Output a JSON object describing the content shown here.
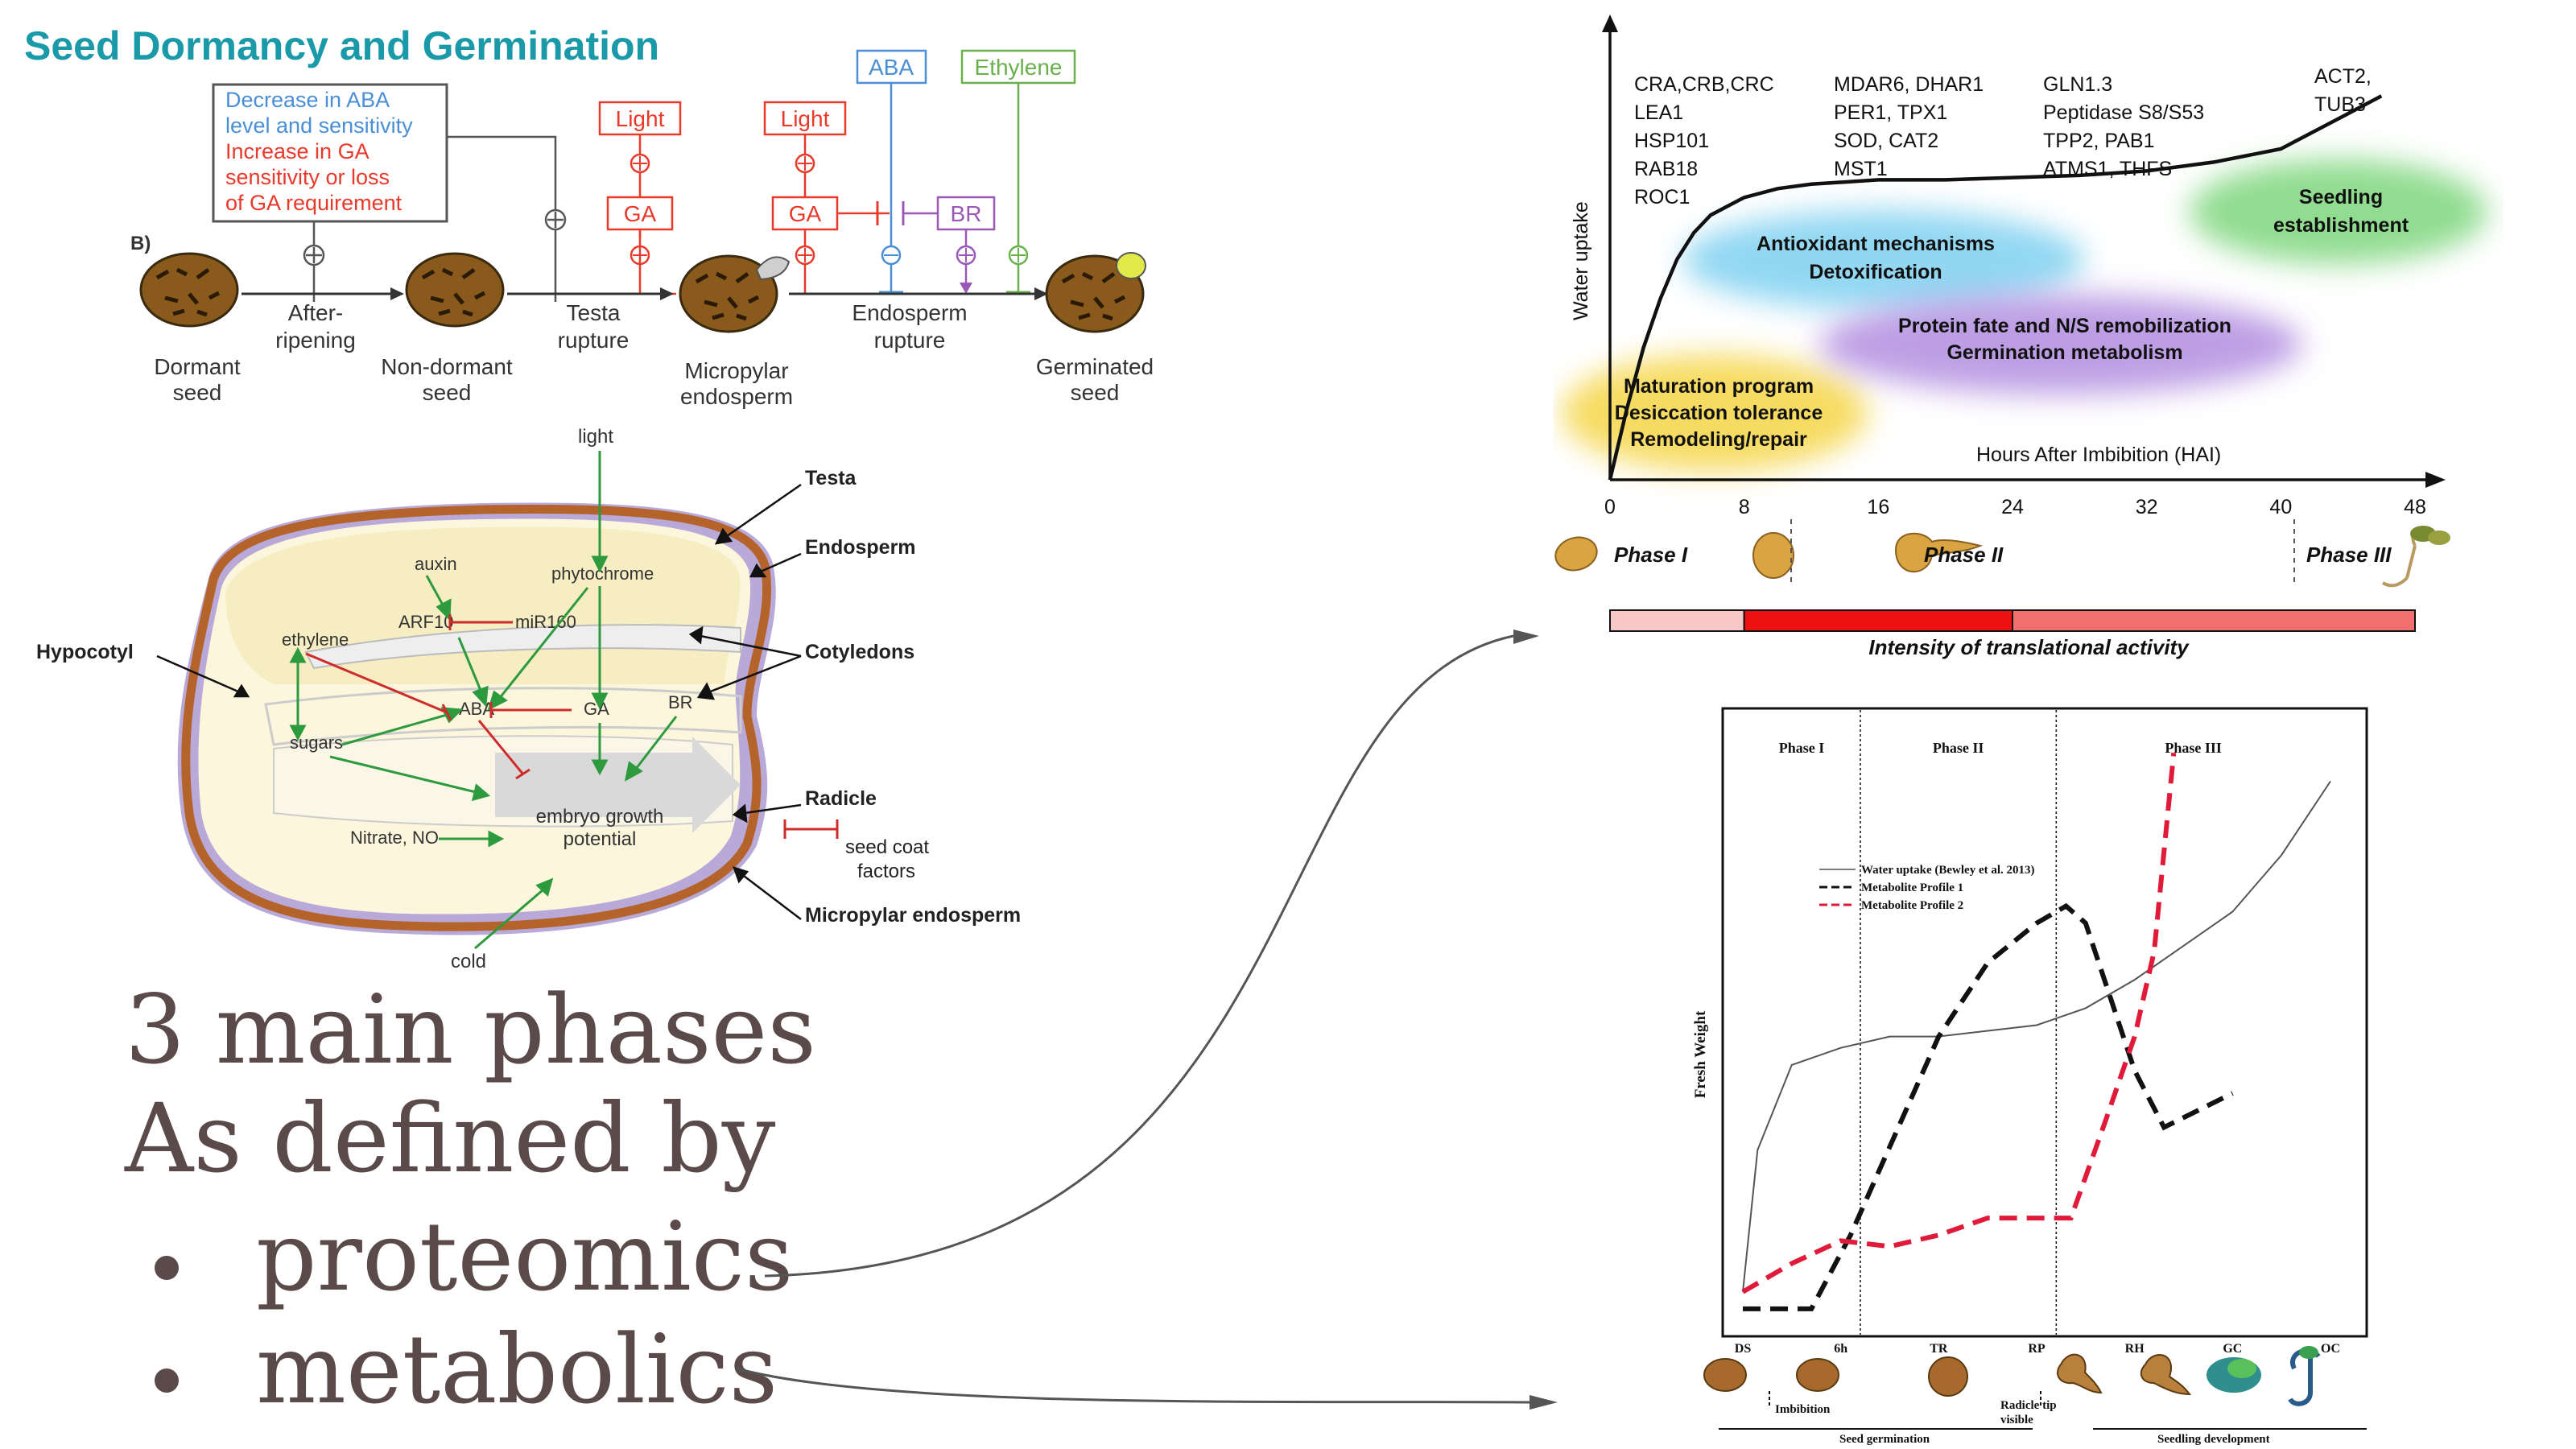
{
  "slide": {
    "title": "Seed Dormancy and Germination",
    "body_line1": "3 main phases",
    "body_line2": "As defined by",
    "bullets": [
      "proteomics",
      "metabolics"
    ]
  },
  "panel_b": {
    "label": "B)",
    "box_line1": "Decrease in ABA",
    "box_line2": "level and sensitivity",
    "box_line3": "Increase in GA",
    "box_line4": "sensitivity or loss",
    "box_line5": "of GA requirement",
    "light1": "Light",
    "ga1": "GA",
    "light2": "Light",
    "ga2": "GA",
    "aba": "ABA",
    "br": "BR",
    "ethylene": "Ethylene",
    "step1_a": "After-",
    "step1_b": "ripening",
    "step2_a": "Testa",
    "step2_b": "rupture",
    "step3_a": "Endosperm",
    "step3_b": "rupture",
    "seed1_a": "Dormant",
    "seed1_b": "seed",
    "seed2_a": "Non-dormant",
    "seed2_b": "seed",
    "seed3_a": "Micropylar",
    "seed3_b": "endosperm",
    "seed4_a": "Germinated",
    "seed4_b": "seed",
    "colors": {
      "red": "#e8392a",
      "blue": "#4a8fd6",
      "green": "#6ab04c",
      "purple": "#9b59b6",
      "grey": "#555555"
    }
  },
  "seed_diagram": {
    "light": "light",
    "testa": "Testa",
    "endosperm": "Endosperm",
    "cotyledons": "Cotyledons",
    "hypocotyl": "Hypocotyl",
    "radicle": "Radicle",
    "seed_coat_1": "seed coat",
    "seed_coat_2": "factors",
    "micropylar": "Micropylar endosperm",
    "auxin": "auxin",
    "phytochrome": "phytochrome",
    "arf10": "ARF10",
    "mir160": "miR160",
    "ethylene": "ethylene",
    "aba": "ABA",
    "ga": "GA",
    "br": "BR",
    "sugars": "sugars",
    "embryo_1": "embryo growth",
    "embryo_2": "potential",
    "nitrate": "Nitrate, NO",
    "cold": "cold"
  },
  "proteomics_chart": {
    "ylabel": "Water uptake",
    "xlabel": "Hours After Imbibition (HAI)",
    "x_ticks": [
      "0",
      "8",
      "16",
      "24",
      "32",
      "40",
      "48"
    ],
    "gene_groups": [
      [
        "CRA,CRB,CRC",
        "LEA1",
        "HSP101",
        "RAB18",
        "ROC1"
      ],
      [
        "MDAR6, DHAR1",
        "PER1, TPX1",
        "SOD, CAT2",
        "MST1"
      ],
      [
        "GLN1.3",
        "Peptidase S8/S53",
        "TPP2, PAB1",
        "ATMS1, THFS"
      ],
      [
        "ACT2,",
        "TUB3"
      ]
    ],
    "process_blobs": [
      {
        "lines": [
          "Maturation program",
          "Desiccation tolerance",
          "Remodeling/repair"
        ],
        "color": "#f5d547"
      },
      {
        "lines": [
          "Antioxidant mechanisms",
          "Detoxification"
        ],
        "color": "#7fd0f0"
      },
      {
        "lines": [
          "Protein fate and N/S remobilization",
          "Germination metabolism"
        ],
        "color": "#b28ee0"
      },
      {
        "lines": [
          "Seedling",
          "establishment"
        ],
        "color": "#7ed67e"
      }
    ],
    "phases": [
      "Phase I",
      "Phase II",
      "Phase III"
    ],
    "bar_caption": "Intensity of translational activity",
    "bar_segments": [
      {
        "from": 0,
        "to": 8,
        "color": "#f8c8c8"
      },
      {
        "from": 8,
        "to": 24,
        "color": "#ee1111"
      },
      {
        "from": 24,
        "to": 48,
        "color": "#f07070"
      }
    ],
    "curve_hai": [
      0,
      1,
      2,
      3,
      4,
      5,
      6,
      7,
      8,
      10,
      12,
      14,
      16,
      20,
      24,
      28,
      32,
      36,
      40,
      44,
      46
    ],
    "curve_uptake": [
      0.0,
      0.16,
      0.3,
      0.41,
      0.5,
      0.56,
      0.6,
      0.62,
      0.64,
      0.66,
      0.67,
      0.675,
      0.68,
      0.68,
      0.685,
      0.69,
      0.7,
      0.72,
      0.75,
      0.83,
      0.87
    ],
    "x_max": 48
  },
  "chart_data": {
    "type": "line",
    "title": "",
    "xlabel": "",
    "ylabel": "Fresh Weight",
    "categories": [
      "DS",
      "6h",
      "TR",
      "RP",
      "RH",
      "GC",
      "OC"
    ],
    "phase_labels": [
      "Phase I",
      "Phase II",
      "Phase III"
    ],
    "series": [
      {
        "name": "Water uptake (Bewley et al. 2013)",
        "color": "#555555",
        "dash": "solid",
        "x": [
          0,
          0.15,
          0.5,
          1,
          1.5,
          2,
          3,
          3.5,
          4,
          4.5,
          5,
          5.5,
          6
        ],
        "y": [
          0.05,
          0.3,
          0.45,
          0.48,
          0.5,
          0.5,
          0.52,
          0.55,
          0.6,
          0.66,
          0.72,
          0.82,
          0.95
        ]
      },
      {
        "name": "Metabolite Profile 1",
        "color": "#111111",
        "dash": "dashed",
        "x": [
          0,
          0.7,
          1.1,
          2,
          2.5,
          3,
          3.3,
          3.5,
          4,
          4.3,
          5
        ],
        "y": [
          0.02,
          0.02,
          0.15,
          0.5,
          0.63,
          0.7,
          0.73,
          0.7,
          0.44,
          0.34,
          0.4
        ]
      },
      {
        "name": "Metabolite Profile 2",
        "color": "#e01b3a",
        "dash": "dashed",
        "x": [
          0,
          0.5,
          1,
          1.5,
          2,
          2.5,
          3,
          3.35,
          3.7,
          4,
          4.2,
          4.4
        ],
        "y": [
          0.05,
          0.1,
          0.14,
          0.13,
          0.15,
          0.18,
          0.18,
          0.18,
          0.35,
          0.5,
          0.65,
          1.0
        ]
      }
    ],
    "phase_boundaries": [
      1.2,
      3.2
    ],
    "stage_labels": [
      "Imbibition",
      "Radicle tip",
      "visible",
      "Seed germination",
      "Seedling development"
    ],
    "ylim": [
      0,
      1.05
    ],
    "xlim": [
      0,
      6
    ]
  }
}
